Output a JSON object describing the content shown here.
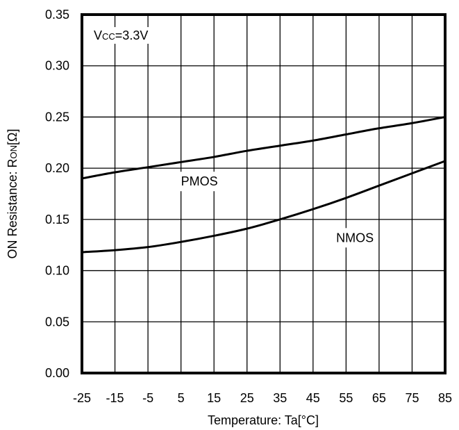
{
  "chart_data": {
    "type": "line",
    "title": "",
    "xlabel": "Temperature: Ta[°C]",
    "ylabel": {
      "main": "ON Resistance: R",
      "subscript": "ON",
      "unit": "[Ω]"
    },
    "xlim": [
      -25,
      85
    ],
    "ylim": [
      0.0,
      0.35
    ],
    "x_ticks": [
      "-25",
      "-15",
      "-5",
      "5",
      "15",
      "25",
      "35",
      "45",
      "55",
      "65",
      "75",
      "85"
    ],
    "y_ticks": [
      "0.00",
      "0.05",
      "0.10",
      "0.15",
      "0.20",
      "0.25",
      "0.30",
      "0.35"
    ],
    "grid": true,
    "condition_label": {
      "main": "V",
      "subscript": "CC",
      "rest": "=3.3V"
    },
    "series": [
      {
        "name": "PMOS",
        "x": [
          -25,
          -15,
          -5,
          5,
          15,
          25,
          35,
          45,
          55,
          65,
          75,
          85
        ],
        "values": [
          0.19,
          0.196,
          0.201,
          0.206,
          0.211,
          0.217,
          0.222,
          0.227,
          0.233,
          0.239,
          0.244,
          0.25
        ]
      },
      {
        "name": "NMOS",
        "x": [
          -25,
          -15,
          -5,
          5,
          15,
          25,
          35,
          45,
          55,
          65,
          75,
          85
        ],
        "values": [
          0.118,
          0.12,
          0.123,
          0.128,
          0.134,
          0.141,
          0.15,
          0.16,
          0.171,
          0.183,
          0.195,
          0.207
        ]
      }
    ],
    "series_labels": [
      {
        "series": "PMOS",
        "x": 5,
        "y": 0.183
      },
      {
        "series": "NMOS",
        "x": 52,
        "y": 0.128
      }
    ],
    "colors": {
      "line": "#000000",
      "grid": "#000000",
      "background": "#ffffff"
    }
  }
}
